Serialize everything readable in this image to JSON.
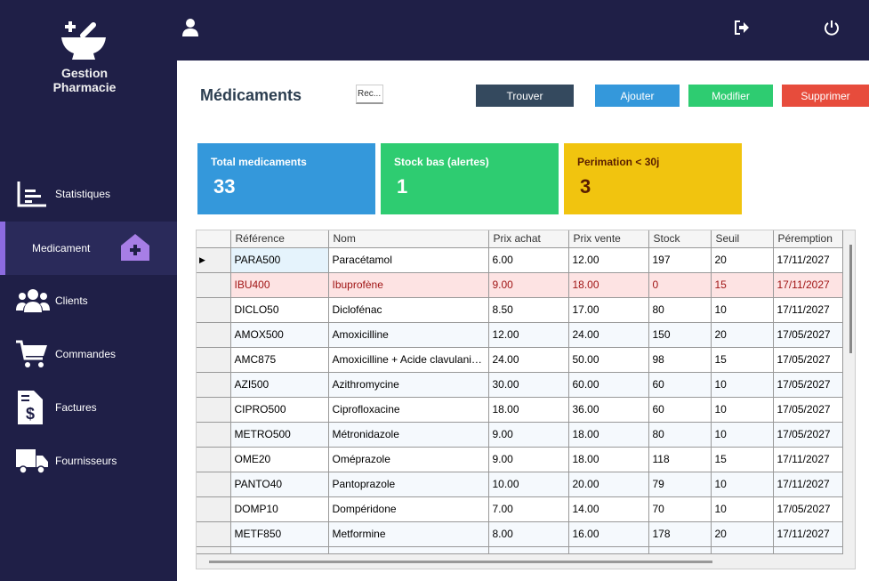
{
  "app": {
    "logo_line1": "Gestion",
    "logo_line2": "Pharmacie"
  },
  "sidebar": {
    "items": [
      {
        "label": "Statistiques",
        "icon": "chart-icon"
      },
      {
        "label": "Medicament",
        "icon": "home-plus-icon",
        "active": true
      },
      {
        "label": "Clients",
        "icon": "users-icon"
      },
      {
        "label": "Commandes",
        "icon": "cart-icon"
      },
      {
        "label": "Factures",
        "icon": "invoice-icon"
      },
      {
        "label": "Fournisseurs",
        "icon": "truck-icon"
      }
    ]
  },
  "topbar": {
    "icons": [
      "user-icon",
      "logout-icon",
      "power-icon"
    ]
  },
  "main": {
    "title": "Médicaments",
    "search_value": "Rec...",
    "buttons": {
      "find": "Trouver",
      "add": "Ajouter",
      "edit": "Modifier",
      "delete": "Supprimer"
    },
    "cards": [
      {
        "label": "Total medicaments",
        "value": "33",
        "color": "#3498db"
      },
      {
        "label": "Stock bas (alertes)",
        "value": "1",
        "color": "#2ecc71"
      },
      {
        "label": "Perimation < 30j",
        "value": "3",
        "color": "#f1c40f"
      }
    ]
  },
  "table": {
    "columns": [
      "Référence",
      "Nom",
      "Prix achat",
      "Prix vente",
      "Stock",
      "Seuil",
      "Péremption"
    ],
    "rows": [
      [
        "PARA500",
        "Paracétamol",
        "6.00",
        "12.00",
        "197",
        "20",
        "17/11/2027"
      ],
      [
        "IBU400",
        "Ibuprofène",
        "9.00",
        "18.00",
        "0",
        "15",
        "17/11/2027"
      ],
      [
        "DICLO50",
        "Diclofénac",
        "8.50",
        "17.00",
        "80",
        "10",
        "17/11/2027"
      ],
      [
        "AMOX500",
        "Amoxicilline",
        "12.00",
        "24.00",
        "150",
        "20",
        "17/05/2027"
      ],
      [
        "AMC875",
        "Amoxicilline + Acide clavulanique",
        "24.00",
        "50.00",
        "98",
        "15",
        "17/05/2027"
      ],
      [
        "AZI500",
        "Azithromycine",
        "30.00",
        "60.00",
        "60",
        "10",
        "17/05/2027"
      ],
      [
        "CIPRO500",
        "Ciprofloxacine",
        "18.00",
        "36.00",
        "60",
        "10",
        "17/05/2027"
      ],
      [
        "METRO500",
        "Métronidazole",
        "9.00",
        "18.00",
        "80",
        "10",
        "17/05/2027"
      ],
      [
        "OME20",
        "Oméprazole",
        "9.00",
        "18.00",
        "118",
        "15",
        "17/11/2027"
      ],
      [
        "PANTO40",
        "Pantoprazole",
        "10.00",
        "20.00",
        "79",
        "10",
        "17/11/2027"
      ],
      [
        "DOMP10",
        "Dompéridone",
        "7.00",
        "14.00",
        "70",
        "10",
        "17/05/2027"
      ],
      [
        "METF850",
        "Metformine",
        "8.00",
        "16.00",
        "178",
        "20",
        "17/11/2027"
      ]
    ],
    "alert_row_color": "#fde3e3"
  }
}
